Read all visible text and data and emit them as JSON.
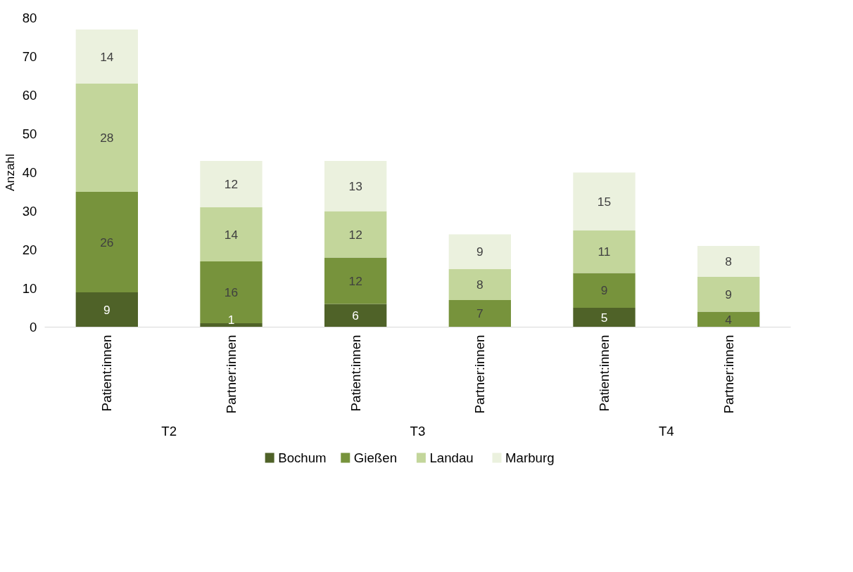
{
  "chart_data": {
    "type": "bar",
    "stacked": true,
    "ylabel": "Anzahl",
    "categories": [
      "Patient:innen",
      "Partner:innen",
      "Patient:innen",
      "Partner:innen",
      "Patient:innen",
      "Partner:innen"
    ],
    "annotations": [
      "T2",
      "T3",
      "T4"
    ],
    "series": [
      {
        "name": "Bochum",
        "color": "#4f6228",
        "values": [
          9,
          1,
          6,
          0,
          5,
          0
        ],
        "value_labels": [
          "9",
          "1",
          "6",
          null,
          "5",
          null
        ]
      },
      {
        "name": "Gießen",
        "color": "#77933c",
        "values": [
          26,
          16,
          12,
          7,
          9,
          4
        ],
        "value_labels": [
          "26",
          "16",
          "12",
          "7",
          "9",
          "4"
        ]
      },
      {
        "name": "Landau",
        "color": "#c3d69b",
        "values": [
          28,
          14,
          12,
          8,
          11,
          9
        ],
        "value_labels": [
          "28",
          "14",
          "12",
          "8",
          "11",
          "9"
        ]
      },
      {
        "name": "Marburg",
        "color": "#ebf1de",
        "values": [
          14,
          12,
          13,
          9,
          15,
          8
        ],
        "value_labels": [
          "14",
          "12",
          "13",
          "9",
          "15",
          "8"
        ]
      }
    ],
    "ylim": [
      0,
      80
    ],
    "yticks": [
      0,
      10,
      20,
      30,
      40,
      50,
      60,
      70,
      80
    ],
    "legend": "bottom",
    "grid": false
  }
}
